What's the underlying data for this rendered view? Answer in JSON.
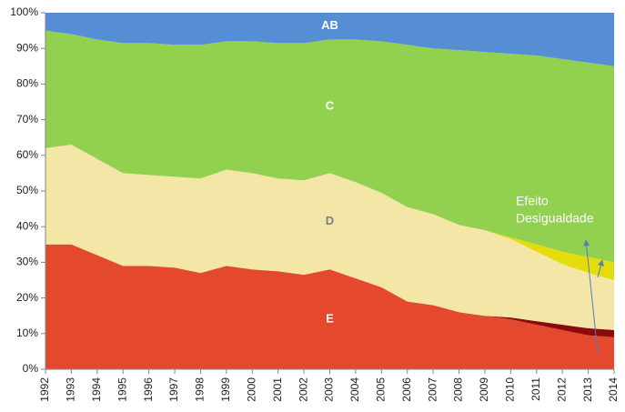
{
  "chart_data": {
    "type": "stacked_area",
    "categories": [
      "1992",
      "1993",
      "1994",
      "1995",
      "1996",
      "1997",
      "1998",
      "1999",
      "2000",
      "2001",
      "2002",
      "2003",
      "2004",
      "2005",
      "2006",
      "2007",
      "2008",
      "2009",
      "2010",
      "2011",
      "2012",
      "2013",
      "2014"
    ],
    "series": [
      {
        "name": "E",
        "color": "#e5492d",
        "label_color": "#ffffff",
        "values": [
          35,
          35,
          32,
          29,
          29,
          28.5,
          27,
          29,
          28,
          27.5,
          26.5,
          28,
          25.5,
          23,
          19,
          18,
          16,
          15,
          14,
          12.5,
          11,
          9.5,
          9
        ]
      },
      {
        "color": "#8b0a0a",
        "values": [
          0,
          0,
          0,
          0,
          0,
          0,
          0,
          0,
          0,
          0,
          0,
          0,
          0,
          0,
          0,
          0,
          0,
          0,
          0.5,
          1,
          1.5,
          2,
          2
        ]
      },
      {
        "name": "D",
        "color": "#f3e6a7",
        "label_color": "#7f7f7f",
        "values": [
          27,
          28,
          27,
          26,
          25.5,
          25.5,
          26.5,
          27,
          27,
          26,
          26.5,
          27,
          27,
          26.5,
          26.5,
          25.5,
          24.5,
          24,
          22,
          19.5,
          17,
          15.5,
          14
        ]
      },
      {
        "color": "#e4dc0c",
        "values": [
          0,
          0,
          0,
          0,
          0,
          0,
          0,
          0,
          0,
          0,
          0,
          0,
          0,
          0,
          0,
          0,
          0,
          0,
          0.5,
          2,
          3.5,
          4.5,
          5
        ]
      },
      {
        "name": "C",
        "color": "#92d050",
        "label_color": "#ffffff",
        "values": [
          33,
          31,
          33.5,
          36.5,
          37,
          37,
          37.5,
          36,
          37,
          38,
          38.5,
          37.5,
          40,
          42.5,
          45.5,
          46.5,
          49,
          50,
          51.5,
          53,
          54,
          54.5,
          55
        ]
      },
      {
        "name": "AB",
        "color": "#558ed5",
        "label_color": "#ffffff",
        "values": [
          5,
          6,
          7.5,
          8.5,
          8.5,
          9,
          9,
          8,
          8,
          8.5,
          8.5,
          7.5,
          7.5,
          8,
          9,
          10,
          10.5,
          11,
          11.5,
          12,
          13,
          14,
          15
        ]
      }
    ],
    "annotation_lines": [
      "Efeito",
      "Desigualdade"
    ],
    "ylim": [
      0,
      100
    ],
    "yticks": [
      {
        "value": 0,
        "label": "0%"
      },
      {
        "value": 10,
        "label": "10%"
      },
      {
        "value": 20,
        "label": "20%"
      },
      {
        "value": 30,
        "label": "30%"
      },
      {
        "value": 40,
        "label": "40%"
      },
      {
        "value": 50,
        "label": "50%"
      },
      {
        "value": 60,
        "label": "60%"
      },
      {
        "value": 70,
        "label": "70%"
      },
      {
        "value": 80,
        "label": "80%"
      },
      {
        "value": 90,
        "label": "90%"
      },
      {
        "value": 100,
        "label": "100%"
      }
    ]
  }
}
